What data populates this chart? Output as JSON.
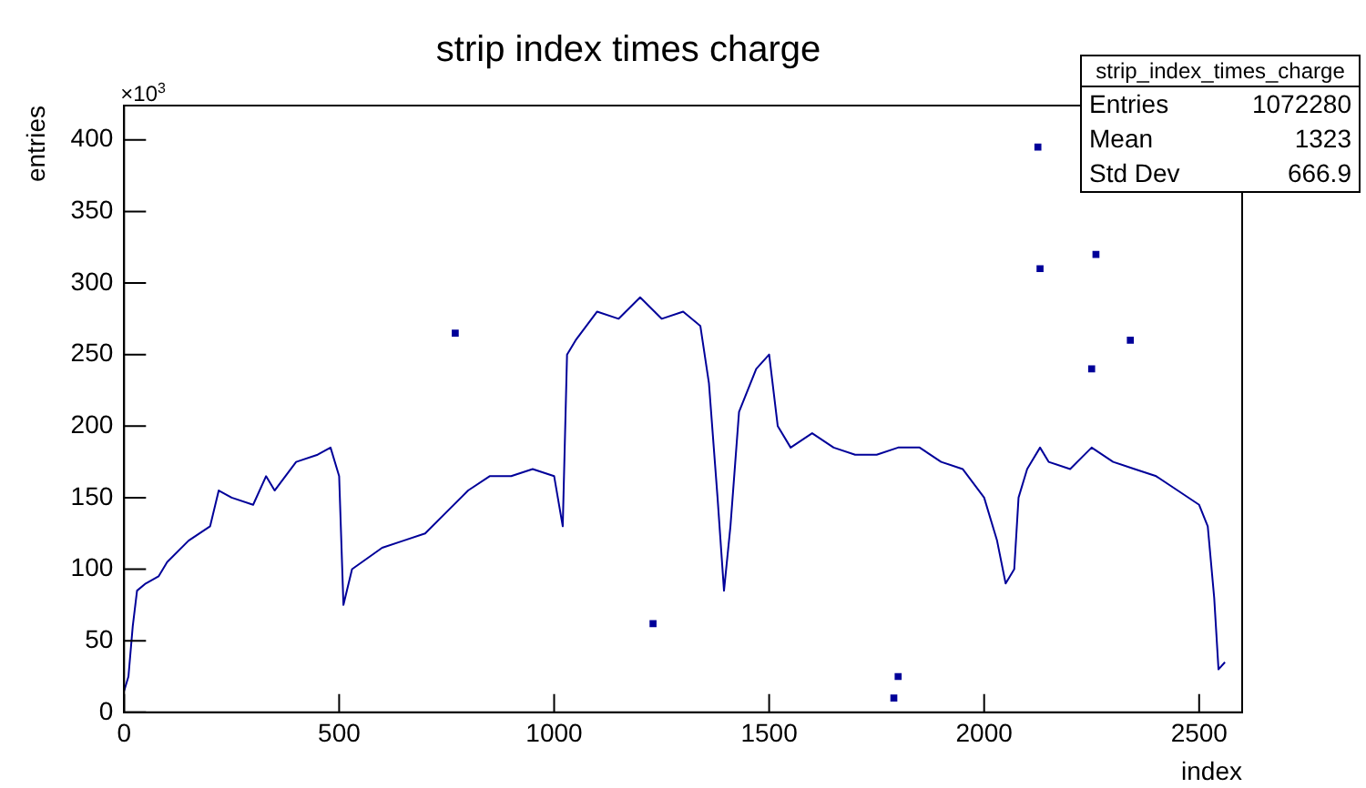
{
  "chart_data": {
    "type": "line",
    "title": "strip index times charge",
    "xlabel": "index",
    "ylabel": "entries",
    "annotations": [
      "×10$^{3}$",
      "strip_index_times_charge",
      "Entries",
      "1072280",
      "Mean",
      "1323",
      "Std Dev",
      "666.9"
    ],
    "xlim": [
      0,
      2600
    ],
    "xticks": [
      0,
      500,
      1000,
      1500,
      2000,
      2500
    ],
    "ylim": [
      0,
      424
    ],
    "yticks": [
      0,
      50,
      100,
      150,
      200,
      250,
      300,
      350,
      400
    ],
    "grid": false,
    "legend": false,
    "series": [
      {
        "color": "#000099",
        "x": [
          0,
          10,
          20,
          30,
          50,
          80,
          100,
          150,
          200,
          220,
          250,
          300,
          330,
          350,
          400,
          450,
          480,
          500,
          510,
          530,
          600,
          650,
          700,
          750,
          800,
          850,
          900,
          950,
          1000,
          1020,
          1030,
          1050,
          1100,
          1150,
          1200,
          1250,
          1300,
          1340,
          1360,
          1380,
          1395,
          1410,
          1430,
          1470,
          1500,
          1520,
          1550,
          1600,
          1650,
          1700,
          1750,
          1800,
          1850,
          1900,
          1950,
          2000,
          2030,
          2050,
          2070,
          2080,
          2100,
          2130,
          2150,
          2200,
          2250,
          2300,
          2350,
          2400,
          2450,
          2500,
          2520,
          2535,
          2545,
          2560
        ],
        "values": [
          15,
          25,
          60,
          85,
          90,
          95,
          105,
          120,
          130,
          155,
          150,
          145,
          165,
          155,
          175,
          180,
          185,
          165,
          75,
          100,
          115,
          120,
          125,
          140,
          155,
          165,
          165,
          170,
          165,
          130,
          250,
          260,
          280,
          275,
          290,
          275,
          280,
          270,
          230,
          150,
          85,
          130,
          210,
          240,
          250,
          200,
          185,
          195,
          185,
          180,
          180,
          185,
          185,
          175,
          170,
          150,
          120,
          90,
          100,
          150,
          170,
          185,
          175,
          170,
          185,
          175,
          170,
          165,
          155,
          145,
          130,
          80,
          30,
          35
        ]
      },
      {
        "type": "scatter",
        "color": "#000099",
        "x": [
          770,
          1230,
          1790,
          1800,
          2125,
          2130,
          2250,
          2260,
          2340
        ],
        "values": [
          265,
          62,
          10,
          25,
          395,
          310,
          240,
          320,
          260
        ]
      }
    ]
  }
}
